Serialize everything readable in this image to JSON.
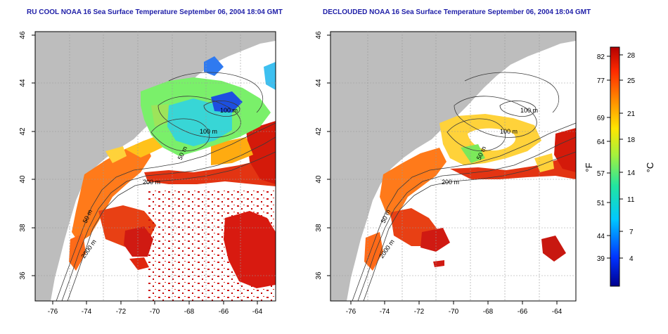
{
  "titles": {
    "left": "RU COOL NOAA 16 Sea Surface Temperature September 06, 2004 18:04 GMT",
    "right": "DECLOUDED NOAA 16 Sea Surface Temperature September 06, 2004 18:04 GMT"
  },
  "axes": {
    "x_ticks": [
      "-76",
      "-74",
      "-72",
      "-70",
      "-68",
      "-66",
      "-64"
    ],
    "y_ticks": [
      "36",
      "38",
      "40",
      "42",
      "44",
      "46"
    ]
  },
  "contour_labels": [
    "100 m",
    "100 m",
    "50 m",
    "200 m",
    "50 m",
    "2000 m"
  ],
  "colorbar": {
    "f_label": "°F",
    "c_label": "°C",
    "f_ticks": [
      "82",
      "77",
      "69",
      "64",
      "57",
      "51",
      "44",
      "39"
    ],
    "c_ticks": [
      "28",
      "25",
      "21",
      "18",
      "14",
      "11",
      "7",
      "4"
    ]
  },
  "colors": {
    "land": "#bdbdbd",
    "ocean_nodata": "#ffffff",
    "title": "#1f1fa8",
    "warm": "#d7191c",
    "mid": "#fdae61",
    "cool": "#2b83ba"
  }
}
